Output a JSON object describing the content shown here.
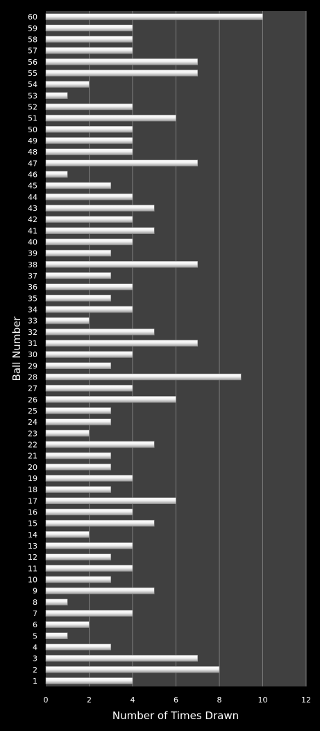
{
  "chart_data": {
    "type": "bar",
    "orientation": "horizontal",
    "xlabel": "Number of Times Drawn",
    "ylabel": "Ball Number",
    "xlim": [
      0,
      12
    ],
    "xticks": [
      0,
      2,
      4,
      6,
      8,
      10,
      12
    ],
    "grid": true,
    "colors": {
      "background": "#000000",
      "plot_area": "#404040",
      "bar": "#f2f2f2",
      "grid": "#7f7f7f",
      "text": "#ffffff"
    },
    "categories": [
      "1",
      "2",
      "3",
      "4",
      "5",
      "6",
      "7",
      "8",
      "9",
      "10",
      "11",
      "12",
      "13",
      "14",
      "15",
      "16",
      "17",
      "18",
      "19",
      "20",
      "21",
      "22",
      "23",
      "24",
      "25",
      "26",
      "27",
      "28",
      "29",
      "30",
      "31",
      "32",
      "33",
      "34",
      "35",
      "36",
      "37",
      "38",
      "39",
      "40",
      "41",
      "42",
      "43",
      "44",
      "45",
      "46",
      "47",
      "48",
      "49",
      "50",
      "51",
      "52",
      "53",
      "54",
      "55",
      "56",
      "57",
      "58",
      "59",
      "60"
    ],
    "values": [
      4,
      8,
      7,
      3,
      1,
      2,
      4,
      1,
      5,
      3,
      4,
      3,
      4,
      2,
      5,
      4,
      6,
      3,
      4,
      3,
      3,
      5,
      2,
      3,
      3,
      6,
      4,
      9,
      3,
      4,
      7,
      5,
      2,
      4,
      3,
      4,
      3,
      7,
      3,
      4,
      5,
      4,
      5,
      4,
      3,
      1,
      7,
      4,
      4,
      4,
      6,
      4,
      1,
      2,
      7,
      7,
      4,
      4,
      4,
      10
    ]
  }
}
